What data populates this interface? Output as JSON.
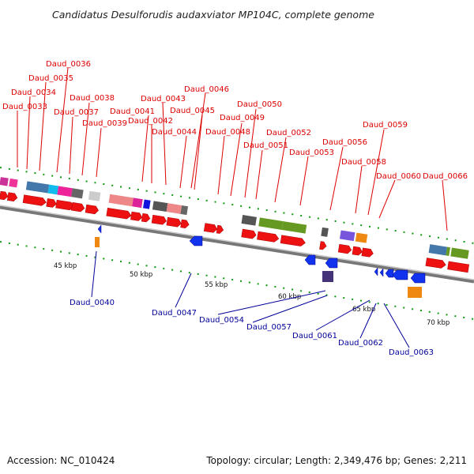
{
  "title": "Candidatus Desulforudis audaxviator MP104C, complete genome",
  "footer": {
    "accession": "Accession: NC_010424",
    "summary": "Topology: circular; Length: 2,349,476 bp; Genes: 2,211"
  },
  "colors": {
    "upper_label": "#dd0000",
    "lower_label": "#000099",
    "forward_gene": "#ee1111",
    "reverse_gene": "#1133ee",
    "backbone": "#888888",
    "tick": "#119911"
  },
  "axis": {
    "unit": "kbp",
    "ticks": [
      {
        "kbp": 45,
        "label": "45 kbp"
      },
      {
        "kbp": 50,
        "label": "50 kbp"
      },
      {
        "kbp": 55,
        "label": "55 kbp"
      },
      {
        "kbp": 60,
        "label": "60 kbp"
      },
      {
        "kbp": 65,
        "label": "65 kbp"
      },
      {
        "kbp": 70,
        "label": "70 kbp"
      }
    ]
  },
  "upper_labels": [
    "Daud_0033",
    "Daud_0034",
    "Daud_0035",
    "Daud_0036",
    "Daud_0037",
    "Daud_0038",
    "Daud_0039",
    "Daud_0041",
    "Daud_0042",
    "Daud_0043",
    "Daud_0044",
    "Daud_0045",
    "Daud_0046",
    "Daud_0048",
    "Daud_0049",
    "Daud_0050",
    "Daud_0051",
    "Daud_0052",
    "Daud_0053",
    "Daud_0056",
    "Daud_0058",
    "Daud_0059",
    "Daud_0060",
    "Daud_0066"
  ],
  "lower_labels": [
    "Daud_0040",
    "Daud_0047",
    "Daud_0054",
    "Daud_0057",
    "Daud_0061",
    "Daud_0062",
    "Daud_0063"
  ]
}
